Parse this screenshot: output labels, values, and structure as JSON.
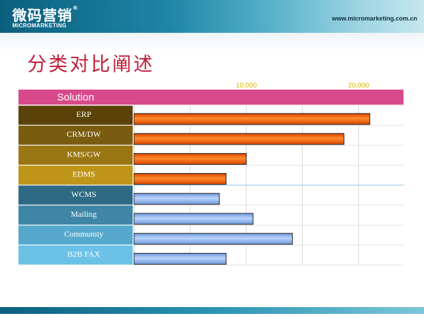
{
  "header": {
    "logo_cn": "微码营销",
    "logo_reg": "®",
    "logo_en": "MICROMARKETING",
    "url": "www.micromarketing.com.cn"
  },
  "page_title": "分类对比阐述",
  "chart_data": {
    "type": "bar",
    "orientation": "horizontal",
    "category_header": "Solution",
    "categories": [
      "ERP",
      "CRM/DW",
      "KMS/GW",
      "EDMS",
      "WCMS",
      "Mailing",
      "Community",
      "B2B  FAX"
    ],
    "values": [
      21000,
      18700,
      10000,
      8200,
      7600,
      10600,
      14100,
      8200
    ],
    "xlim": [
      0,
      24000
    ],
    "xticks": [
      10000,
      20000
    ],
    "xtick_labels": [
      "10,000",
      "20,000"
    ],
    "grid": true,
    "colors": {
      "header_band": "#d94a8c",
      "bar_group_1": "#ff6f1a",
      "bar_group_2": "#8fb6f2",
      "label_cells": [
        "#5a4208",
        "#7a5c10",
        "#9a7613",
        "#c0961a",
        "#2f6a84",
        "#3f85a6",
        "#56a9cd",
        "#6cc1e6"
      ]
    }
  }
}
